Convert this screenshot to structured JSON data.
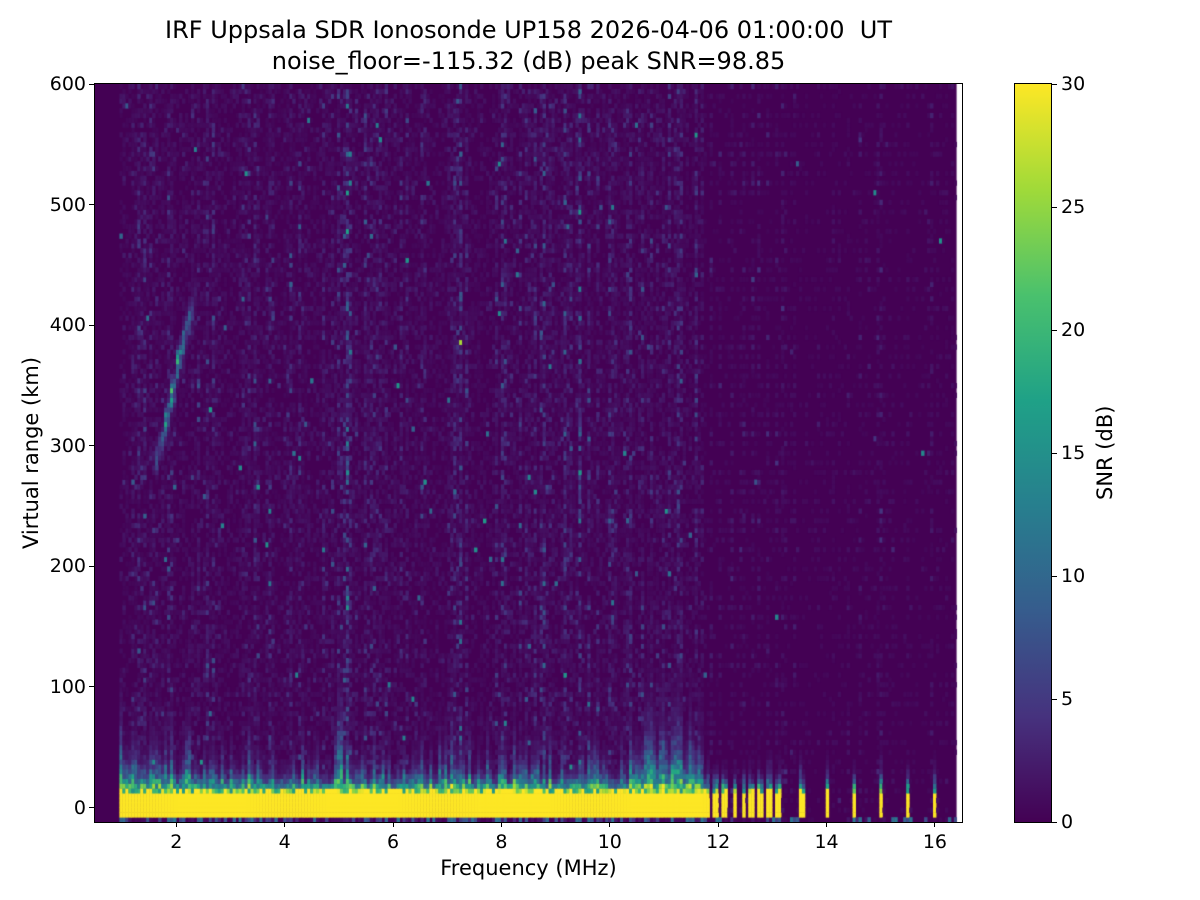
{
  "chart_data": {
    "type": "heatmap",
    "title": "IRF Uppsala SDR Ionosonde UP158 2026-04-06 01:00:00  UT",
    "subtitle": "noise_floor=-115.32 (dB) peak SNR=98.85",
    "xlabel": "Frequency (MHz)",
    "ylabel": "Virtual range (km)",
    "colorbar_label": "SNR (dB)",
    "xlim": [
      0.5,
      16.5
    ],
    "ylim": [
      -12,
      600
    ],
    "xticks": [
      2,
      4,
      6,
      8,
      10,
      12,
      14,
      16
    ],
    "yticks": [
      0,
      100,
      200,
      300,
      400,
      500,
      600
    ],
    "colorbar_ticks": [
      0,
      5,
      10,
      15,
      20,
      25,
      30
    ],
    "colorbar_range": [
      0,
      30
    ],
    "colormap": "viridis",
    "colormap_stops": [
      "#440154",
      "#46327e",
      "#365c8d",
      "#277f8e",
      "#1fa187",
      "#4ac16d",
      "#a0da39",
      "#fde725"
    ],
    "grid": false,
    "legend": "colorbar-right",
    "noise_floor_db": -115.32,
    "peak_snr_db": 98.85,
    "features": {
      "data_freq_start_mhz": 0.95,
      "data_freq_end_mhz": 16.4,
      "mesh_freq_start_mhz": 0.5,
      "background_noise_mean_db": 1.05,
      "background_speckle_max_db": 16,
      "quiet_above_mhz": 11.7,
      "ground_pulse_band": {
        "freq_mhz": [
          0.95,
          11.7
        ],
        "range_km": [
          -8,
          12
        ],
        "snr_db": 30
      },
      "band_halo_max_km": 35,
      "ionospheric_echo": {
        "freq_mhz": [
          1.6,
          2.35
        ],
        "range_km": [
          285,
          435
        ],
        "peak_snr_db": 20,
        "peak_freq_mhz": 1.97,
        "sigma_km": 8
      },
      "interference_lines": [
        {
          "freq_mhz": 3.3,
          "strength": 2.0
        },
        {
          "freq_mhz": 4.97,
          "strength": 2.4,
          "band_spike_top_km": 38
        },
        {
          "freq_mhz": 5.15,
          "strength": 1.6
        },
        {
          "freq_mhz": 9.42,
          "strength": 3.0
        }
      ],
      "tx_bars_mhz": [
        11.78,
        11.95,
        12.12,
        12.3,
        12.47,
        12.62,
        12.78,
        12.95,
        13.1,
        13.55,
        14.0,
        14.5,
        15.0,
        15.5,
        16.0
      ],
      "cell_freq_step_mhz": 0.055,
      "cell_range_step_km": 4
    }
  }
}
